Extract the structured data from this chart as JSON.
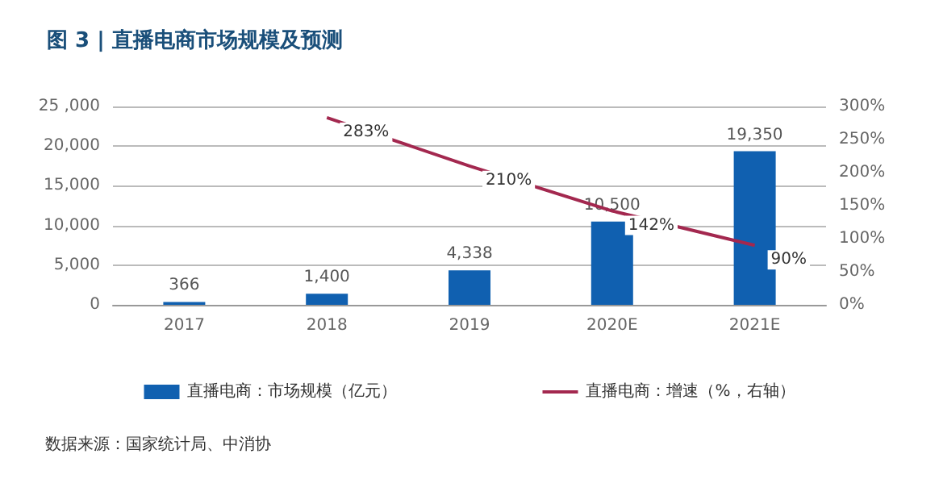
{
  "chart_data": {
    "type": "bar",
    "title": "图 3 | 直播电商市场规模及预测",
    "categories": [
      "2017",
      "2018",
      "2019",
      "2020E",
      "2021E"
    ],
    "series": [
      {
        "name": "直播电商：市场规模（亿元）",
        "color": "#1060b0",
        "values": [
          366,
          1400,
          4338,
          10500,
          19350
        ],
        "value_labels": [
          "366",
          "1,400",
          "4,338",
          "10,500",
          "19,350"
        ]
      },
      {
        "name": "直播电商：增速（%，右轴）",
        "type": "line",
        "axis": "y2",
        "color": "#a3284f",
        "values": [
          null,
          283,
          210,
          142,
          90
        ],
        "value_labels": [
          null,
          "283%",
          "210%",
          "142%",
          "90%"
        ]
      }
    ],
    "ylim": [
      0,
      25000
    ],
    "yticks": [
      {
        "value": 0,
        "label": "0"
      },
      {
        "value": 5000,
        "label": "5,000"
      },
      {
        "value": 10000,
        "label": "10,000"
      },
      {
        "value": 15000,
        "label": "15,000"
      },
      {
        "value": 20000,
        "label": "20,000"
      },
      {
        "value": 25000,
        "label": "25 ,000"
      }
    ],
    "y2lim": [
      0,
      300
    ],
    "y2ticks": [
      {
        "value": 0,
        "label": "0%"
      },
      {
        "value": 50,
        "label": "50%"
      },
      {
        "value": 100,
        "label": "100%"
      },
      {
        "value": 150,
        "label": "150%"
      },
      {
        "value": 200,
        "label": "200%"
      },
      {
        "value": 250,
        "label": "250%"
      },
      {
        "value": 300,
        "label": "300%"
      }
    ],
    "grid": "y",
    "legend": "bottom",
    "marker": "none",
    "annotations": [
      "数据来源：国家统计局、中消协"
    ]
  }
}
